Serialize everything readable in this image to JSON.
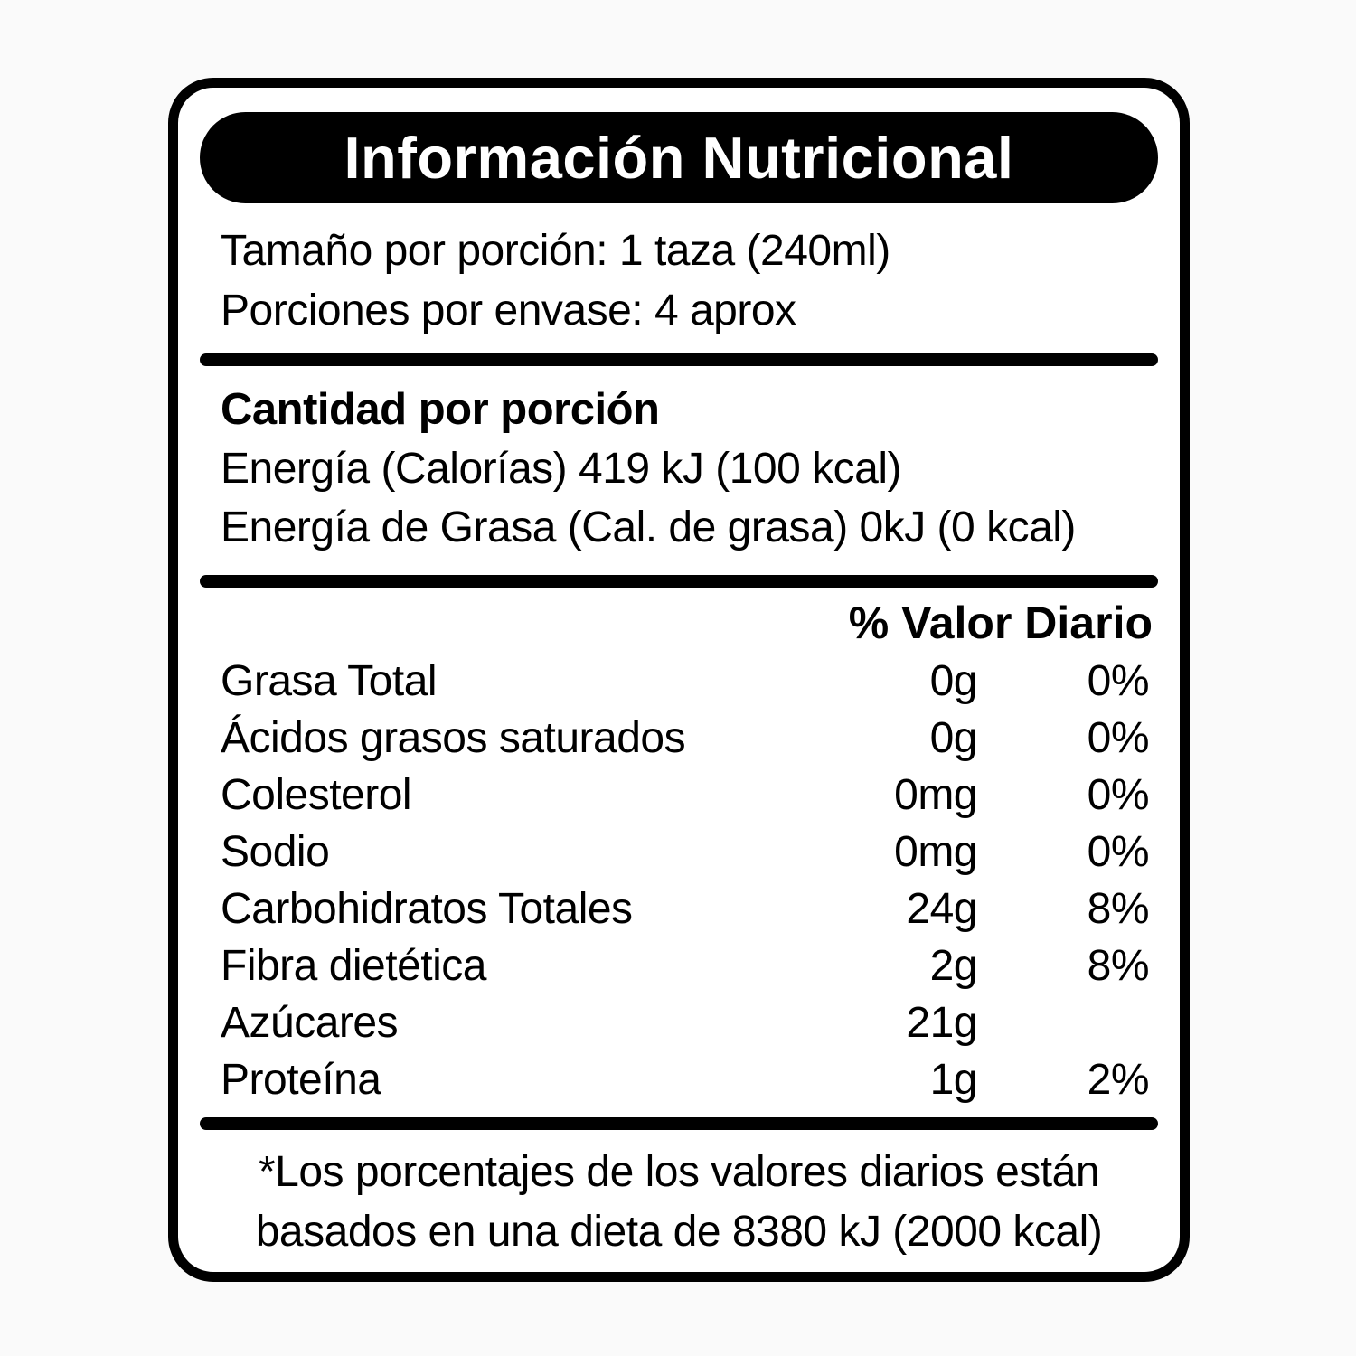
{
  "label": {
    "title": "Información Nutricional",
    "serving": {
      "line1": "Tamaño por porción: 1 taza (240ml)",
      "line2": "Porciones por envase: 4 aprox"
    },
    "amount_section": {
      "heading": "Cantidad por porción",
      "energy_line": "Energía (Calorías) 419 kJ (100 kcal)",
      "energy_fat_line": "Energía de Grasa (Cal. de grasa) 0kJ (0 kcal)"
    },
    "table": {
      "header": "% Valor Diario",
      "rows": [
        {
          "name": "Grasa Total",
          "amount": "0g",
          "dv": "0%"
        },
        {
          "name": "Ácidos grasos saturados",
          "amount": "0g",
          "dv": "0%"
        },
        {
          "name": "Colesterol",
          "amount": "0mg",
          "dv": "0%"
        },
        {
          "name": "Sodio",
          "amount": "0mg",
          "dv": "0%"
        },
        {
          "name": "Carbohidratos Totales",
          "amount": "24g",
          "dv": "8%"
        },
        {
          "name": "Fibra dietética",
          "amount": "2g",
          "dv": "8%"
        },
        {
          "name": "Azúcares",
          "amount": "21g",
          "dv": ""
        },
        {
          "name": "Proteína",
          "amount": "1g",
          "dv": "2%"
        }
      ]
    },
    "footnote": {
      "line1": "*Los porcentajes de los valores diarios están",
      "line2": "basados en una dieta de 8380 kJ (2000 kcal)"
    },
    "colors": {
      "ink": "#000000",
      "paper": "#ffffff"
    }
  }
}
